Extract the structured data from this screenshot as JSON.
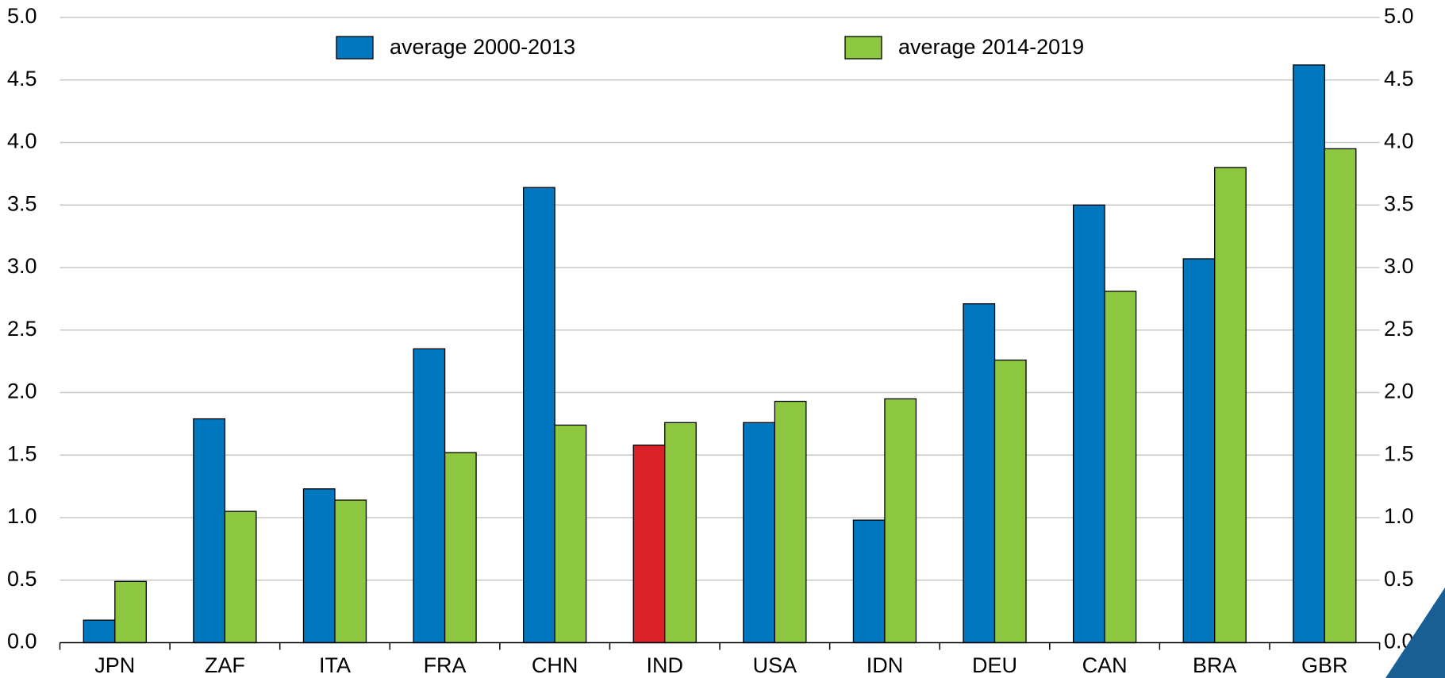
{
  "chart_data": {
    "type": "bar",
    "categories": [
      "JPN",
      "ZAF",
      "ITA",
      "FRA",
      "CHN",
      "IND",
      "USA",
      "IDN",
      "DEU",
      "CAN",
      "BRA",
      "GBR"
    ],
    "series": [
      {
        "name": "average 2000-2013",
        "color": "#0077bf",
        "colors": [
          "#0077bf",
          "#0077bf",
          "#0077bf",
          "#0077bf",
          "#0077bf",
          "#da2128",
          "#0077bf",
          "#0077bf",
          "#0077bf",
          "#0077bf",
          "#0077bf",
          "#0077bf"
        ],
        "values": [
          0.18,
          1.79,
          1.23,
          2.35,
          3.64,
          1.58,
          1.76,
          0.98,
          2.71,
          3.5,
          3.07,
          4.62
        ]
      },
      {
        "name": "average 2014-2019",
        "color": "#8dc63f",
        "values": [
          0.49,
          1.05,
          1.14,
          1.52,
          1.74,
          1.76,
          1.93,
          1.95,
          2.26,
          2.81,
          3.8,
          3.95
        ]
      }
    ],
    "ylim": [
      0,
      5
    ],
    "yticks": [
      {
        "value": 0,
        "label": "0.0"
      },
      {
        "value": 0.5,
        "label": "0.5"
      },
      {
        "value": 1,
        "label": "1.0"
      },
      {
        "value": 1.5,
        "label": "1.5"
      },
      {
        "value": 2,
        "label": "2.0"
      },
      {
        "value": 2.5,
        "label": "2.5"
      },
      {
        "value": 3,
        "label": "3.0"
      },
      {
        "value": 3.5,
        "label": "3.5"
      },
      {
        "value": 4,
        "label": "4.0"
      },
      {
        "value": 4.5,
        "label": "4.5"
      },
      {
        "value": 5,
        "label": "5.0"
      }
    ],
    "y2lim": [
      0,
      5
    ],
    "y2ticks": [
      {
        "value": 0,
        "label": "0.0"
      },
      {
        "value": 0.5,
        "label": "0.5"
      },
      {
        "value": 1,
        "label": "1.0"
      },
      {
        "value": 1.5,
        "label": "1.5"
      },
      {
        "value": 2,
        "label": "2.0"
      },
      {
        "value": 2.5,
        "label": "2.5"
      },
      {
        "value": 3,
        "label": "3.0"
      },
      {
        "value": 3.5,
        "label": "3.5"
      },
      {
        "value": 4,
        "label": "4.0"
      },
      {
        "value": 4.5,
        "label": "4.5"
      },
      {
        "value": 5,
        "label": "5.0"
      }
    ],
    "grid": true,
    "legend": "top"
  }
}
